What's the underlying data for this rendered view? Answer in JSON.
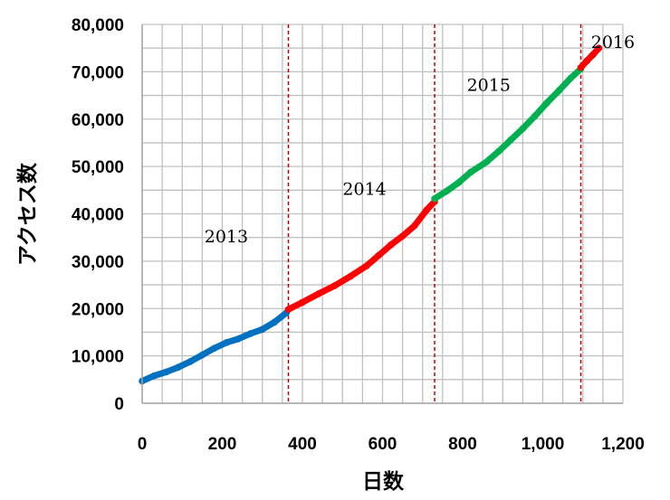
{
  "chart_data": {
    "type": "scatter",
    "title": "",
    "xlabel": "日数",
    "ylabel": "アクセス数",
    "xlim": [
      0,
      1200
    ],
    "ylim": [
      0,
      80000
    ],
    "grid": true,
    "x_ticks": [
      {
        "value": 0,
        "label": "0"
      },
      {
        "value": 200,
        "label": "200"
      },
      {
        "value": 400,
        "label": "400"
      },
      {
        "value": 600,
        "label": "600"
      },
      {
        "value": 800,
        "label": "800"
      },
      {
        "value": 1000,
        "label": "1,000"
      },
      {
        "value": 1200,
        "label": "1,200"
      }
    ],
    "y_ticks": [
      {
        "value": 0,
        "label": "0"
      },
      {
        "value": 10000,
        "label": "10,000"
      },
      {
        "value": 20000,
        "label": "20,000"
      },
      {
        "value": 30000,
        "label": "30,000"
      },
      {
        "value": 40000,
        "label": "40,000"
      },
      {
        "value": 50000,
        "label": "50,000"
      },
      {
        "value": 60000,
        "label": "60,000"
      },
      {
        "value": 70000,
        "label": "70,000"
      },
      {
        "value": 80000,
        "label": "80,000"
      }
    ],
    "year_boundaries": [
      365,
      730,
      1095
    ],
    "boundary_color": "#c00000",
    "grid_color": "#c0c0c0",
    "annotations": [
      {
        "text": "2013",
        "x": 210,
        "y": 34000
      },
      {
        "text": "2014",
        "x": 555,
        "y": 44000
      },
      {
        "text": "2015",
        "x": 865,
        "y": 66000
      },
      {
        "text": "2016",
        "x": 1175,
        "y": 75000
      }
    ],
    "series": [
      {
        "color": "#0070c0",
        "points": [
          [
            0,
            4700
          ],
          [
            30,
            5800
          ],
          [
            60,
            6600
          ],
          [
            90,
            7600
          ],
          [
            120,
            8800
          ],
          [
            150,
            10200
          ],
          [
            180,
            11600
          ],
          [
            210,
            12800
          ],
          [
            240,
            13600
          ],
          [
            270,
            14700
          ],
          [
            300,
            15600
          ],
          [
            330,
            17100
          ],
          [
            360,
            19100
          ]
        ]
      },
      {
        "color": "#ff0000",
        "points": [
          [
            365,
            19800
          ],
          [
            400,
            21300
          ],
          [
            440,
            23100
          ],
          [
            480,
            24800
          ],
          [
            520,
            26800
          ],
          [
            560,
            29000
          ],
          [
            590,
            31200
          ],
          [
            620,
            33400
          ],
          [
            650,
            35300
          ],
          [
            680,
            37500
          ],
          [
            710,
            40800
          ],
          [
            730,
            42600
          ]
        ]
      },
      {
        "color": "#00b050",
        "points": [
          [
            730,
            43200
          ],
          [
            760,
            44800
          ],
          [
            790,
            46600
          ],
          [
            820,
            48800
          ],
          [
            860,
            51000
          ],
          [
            890,
            53200
          ],
          [
            920,
            55600
          ],
          [
            950,
            58000
          ],
          [
            980,
            60600
          ],
          [
            1010,
            63400
          ],
          [
            1040,
            66000
          ],
          [
            1070,
            68700
          ],
          [
            1095,
            70600
          ]
        ]
      },
      {
        "color": "#ff0000",
        "points": [
          [
            1095,
            70900
          ],
          [
            1110,
            72300
          ],
          [
            1125,
            73600
          ],
          [
            1140,
            75000
          ]
        ]
      }
    ]
  }
}
